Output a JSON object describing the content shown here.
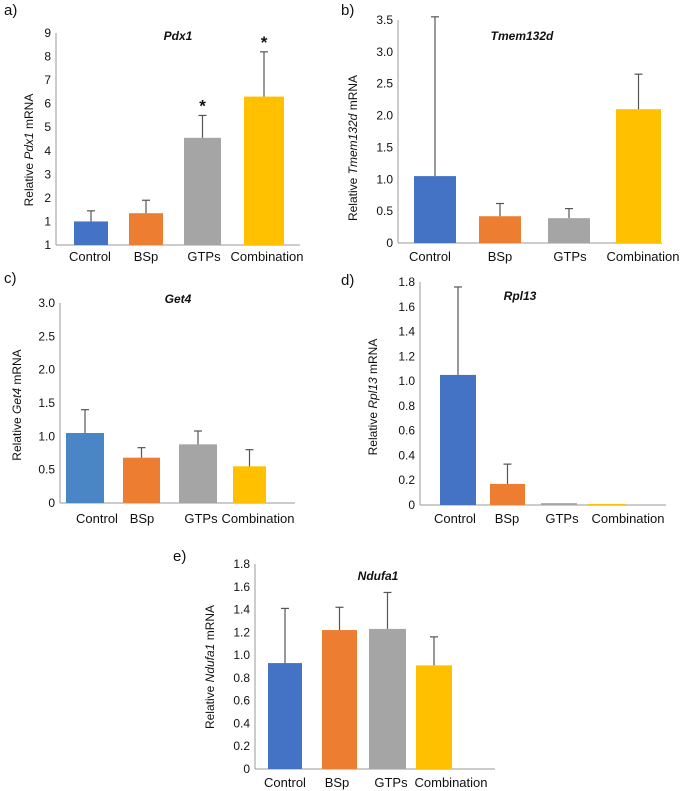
{
  "chart_data": [
    {
      "type": "bar",
      "panel": "a)",
      "title": "Pdx1",
      "ylabel_pre": "Relative ",
      "ylabel_gene": "Pdx1",
      "ylabel_post": " mRNA",
      "categories": [
        "Control",
        "BSp",
        "GTPs",
        "Combination"
      ],
      "values": [
        1.0,
        1.35,
        4.55,
        6.3
      ],
      "errors": [
        0.45,
        0.55,
        0.95,
        1.9
      ],
      "colors": [
        "#4472C4",
        "#ED7D31",
        "#A5A5A5",
        "#FFC000"
      ],
      "annotations": [
        "",
        "",
        "*",
        "*"
      ],
      "yticks": [
        "1",
        "1",
        "2",
        "3",
        "4",
        "5",
        "6",
        "7",
        "8",
        "9"
      ],
      "ylim": [
        0,
        9
      ]
    },
    {
      "type": "bar",
      "panel": "b)",
      "title": "Tmem132d",
      "ylabel_pre": "Relative ",
      "ylabel_gene": "Tmem132d",
      "ylabel_post": "  mRNA",
      "categories": [
        "Control",
        "BSp",
        "GTPs",
        "Combination"
      ],
      "values": [
        1.05,
        0.42,
        0.39,
        2.1
      ],
      "errors": [
        2.5,
        0.2,
        0.15,
        0.55
      ],
      "colors": [
        "#4472C4",
        "#ED7D31",
        "#A5A5A5",
        "#FFC000"
      ],
      "annotations": [
        "",
        "",
        "",
        ""
      ],
      "yticks": [
        "0",
        "0.5",
        "1.0",
        "1.5",
        "2.0",
        "2.5",
        "3.0",
        "3.5"
      ],
      "ylim": [
        0,
        3.5
      ]
    },
    {
      "type": "bar",
      "panel": "c)",
      "title": "Get4",
      "ylabel_pre": "Relative ",
      "ylabel_gene": "Get4",
      "ylabel_post": "  mRNA",
      "categories": [
        "Control",
        "BSp",
        "GTPs",
        "Combination"
      ],
      "values": [
        1.05,
        0.68,
        0.88,
        0.55
      ],
      "errors": [
        0.35,
        0.15,
        0.2,
        0.25
      ],
      "colors": [
        "#4A86C5",
        "#ED7D31",
        "#A5A5A5",
        "#FFC000"
      ],
      "annotations": [
        "",
        "",
        "",
        ""
      ],
      "yticks": [
        "0",
        "0.5",
        "1.0",
        "1.5",
        "2.0",
        "2.5",
        "3.0"
      ],
      "ylim": [
        0,
        3.0
      ]
    },
    {
      "type": "bar",
      "panel": "d)",
      "title": "Rpl13",
      "ylabel_pre": "Relative ",
      "ylabel_gene": "Rpl13",
      "ylabel_post": "  mRNA",
      "categories": [
        "Control",
        "BSp",
        "GTPs",
        "Combination"
      ],
      "values": [
        1.05,
        0.17,
        0.015,
        0.008
      ],
      "errors": [
        0.71,
        0.16,
        0.0,
        0.0
      ],
      "colors": [
        "#4472C4",
        "#ED7D31",
        "#A5A5A5",
        "#FFC000"
      ],
      "annotations": [
        "",
        "",
        "",
        ""
      ],
      "yticks": [
        "0",
        "0.2",
        "0.4",
        "0.6",
        "0.8",
        "1.0",
        "1.2",
        "1.4",
        "1.6",
        "1.8"
      ],
      "ylim": [
        0,
        1.8
      ]
    },
    {
      "type": "bar",
      "panel": "e)",
      "title": "Ndufa1",
      "ylabel_pre": "Relative ",
      "ylabel_gene": "Ndufa1",
      "ylabel_post": " mRNA",
      "categories": [
        "Control",
        "BSp",
        "GTPs",
        "Combination"
      ],
      "values": [
        0.93,
        1.22,
        1.23,
        0.91
      ],
      "errors": [
        0.48,
        0.2,
        0.32,
        0.25
      ],
      "colors": [
        "#4472C4",
        "#ED7D31",
        "#A5A5A5",
        "#FFC000"
      ],
      "annotations": [
        "",
        "",
        "",
        ""
      ],
      "yticks": [
        "0",
        "0.2",
        "0.4",
        "0.6",
        "0.8",
        "1.0",
        "1.2",
        "1.4",
        "1.6",
        "1.8"
      ],
      "ylim": [
        0,
        1.8
      ]
    }
  ]
}
